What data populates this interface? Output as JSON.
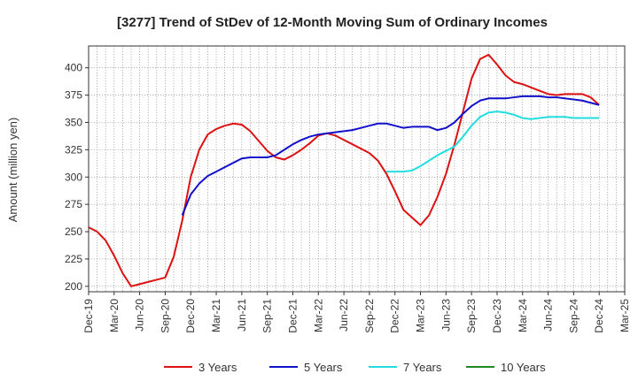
{
  "chart_data": {
    "type": "line",
    "title": "[3277]  Trend of StDev of 12-Month Moving Sum of Ordinary Incomes",
    "xlabel": "",
    "ylabel": "Amount (million yen)",
    "ylim": [
      195,
      420
    ],
    "yticks": [
      200,
      225,
      250,
      275,
      300,
      325,
      350,
      375,
      400
    ],
    "grid": true,
    "legend_position": "bottom",
    "x_tick_labels": [
      "Dec-19",
      "Mar-20",
      "Jun-20",
      "Sep-20",
      "Dec-20",
      "Mar-21",
      "Jun-21",
      "Sep-21",
      "Dec-21",
      "Mar-22",
      "Jun-22",
      "Sep-22",
      "Dec-22",
      "Mar-23",
      "Jun-23",
      "Sep-23",
      "Dec-23",
      "Mar-24",
      "Jun-24",
      "Sep-24",
      "Dec-24",
      "Mar-25"
    ],
    "x_unit": "months since Dec-19",
    "x_max": 63,
    "series": [
      {
        "name": "3 Years",
        "color": "#dd1111",
        "x": [
          0,
          1,
          2,
          3,
          4,
          5,
          6,
          7,
          8,
          9,
          10,
          11,
          12,
          13,
          14,
          15,
          16,
          17,
          18,
          19,
          20,
          21,
          22,
          23,
          24,
          25,
          26,
          27,
          28,
          29,
          30,
          31,
          32,
          33,
          34,
          35,
          36,
          37,
          38,
          39,
          40,
          41,
          42,
          43,
          44,
          45,
          46,
          47,
          48,
          49,
          50,
          51,
          52,
          53,
          54,
          55,
          56,
          57,
          58,
          59,
          60
        ],
        "y": [
          254,
          250,
          242,
          228,
          212,
          200,
          202,
          204,
          206,
          208,
          227,
          260,
          300,
          325,
          339,
          344,
          347,
          349,
          348,
          342,
          333,
          324,
          318,
          316,
          320,
          325,
          331,
          338,
          340,
          338,
          334,
          330,
          326,
          322,
          315,
          303,
          287,
          270,
          263,
          256,
          265,
          282,
          303,
          330,
          360,
          390,
          408,
          412,
          403,
          393,
          387,
          385,
          382,
          379,
          376,
          375,
          376,
          376,
          376,
          373,
          366
        ]
      },
      {
        "name": "5 Years",
        "color": "#1111cc",
        "x": [
          11,
          12,
          13,
          14,
          15,
          16,
          17,
          18,
          19,
          20,
          21,
          22,
          23,
          24,
          25,
          26,
          27,
          28,
          29,
          30,
          31,
          32,
          33,
          34,
          35,
          36,
          37,
          38,
          39,
          40,
          41,
          42,
          43,
          44,
          45,
          46,
          47,
          48,
          49,
          50,
          51,
          52,
          53,
          54,
          55,
          56,
          57,
          58,
          59,
          60
        ],
        "y": [
          265,
          284,
          294,
          301,
          305,
          309,
          313,
          317,
          318,
          318,
          318,
          320,
          325,
          330,
          334,
          337,
          339,
          340,
          341,
          342,
          343,
          345,
          347,
          349,
          349,
          347,
          345,
          346,
          346,
          346,
          343,
          345,
          350,
          358,
          365,
          370,
          372,
          372,
          372,
          373,
          374,
          374,
          374,
          373,
          373,
          372,
          371,
          370,
          368,
          366
        ]
      },
      {
        "name": "7 Years",
        "color": "#22dddd",
        "x": [
          35,
          36,
          37,
          38,
          39,
          40,
          41,
          42,
          43,
          44,
          45,
          46,
          47,
          48,
          49,
          50,
          51,
          52,
          53,
          54,
          55,
          56,
          57,
          58,
          59,
          60
        ],
        "y": [
          305,
          305,
          305,
          306,
          310,
          315,
          320,
          324,
          328,
          337,
          347,
          355,
          359,
          360,
          359,
          357,
          354,
          353,
          354,
          355,
          355,
          355,
          354,
          354,
          354,
          354
        ]
      },
      {
        "name": "10 Years",
        "color": "#228822",
        "x": [],
        "y": []
      }
    ]
  }
}
